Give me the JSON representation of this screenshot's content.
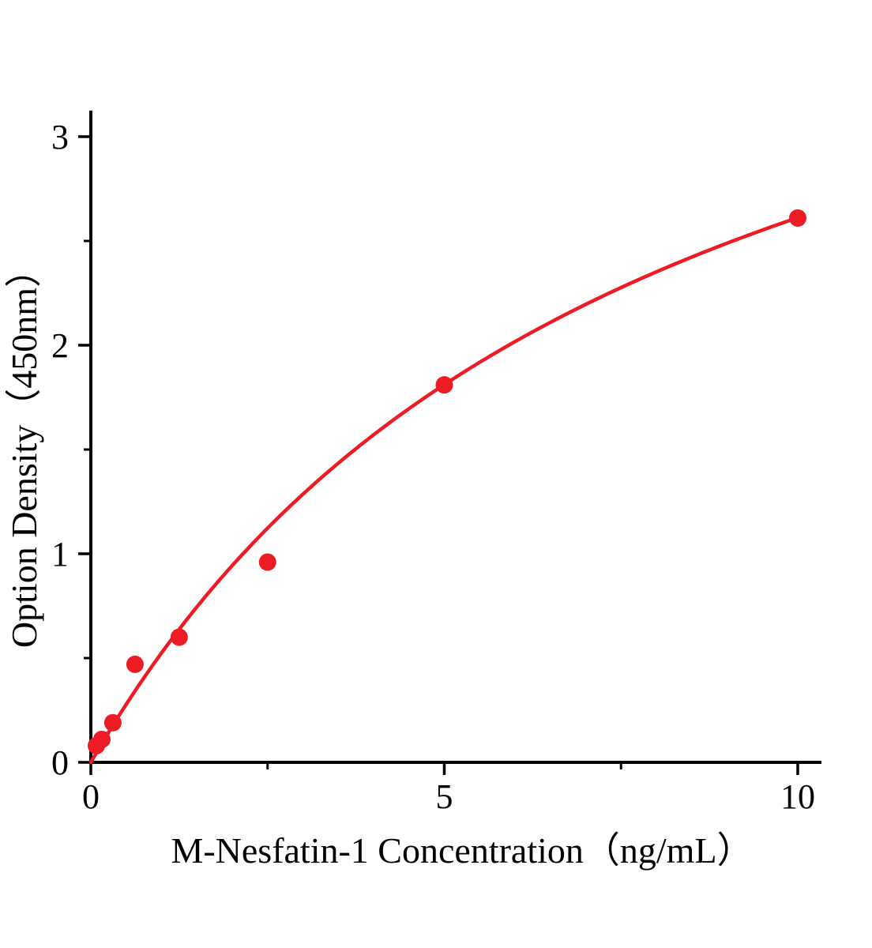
{
  "page": {
    "background": "#ffffff"
  },
  "chart_data": {
    "type": "scatter",
    "title": "",
    "xlabel": "M-Nesfatin-1 Concentration（ng/mL）",
    "ylabel": "Option Density（450nm）",
    "x_ticks": [
      0,
      5,
      10
    ],
    "y_ticks": [
      0,
      1,
      2,
      3
    ],
    "x_minor_ticks": [
      2.5,
      7.5
    ],
    "y_minor_ticks": [
      0.5,
      1.5,
      2.5
    ],
    "xlim": [
      0,
      10.35
    ],
    "ylim": [
      0,
      3.1
    ],
    "grid": false,
    "legend": null,
    "marker_color": "#ed1c24",
    "line_color": "#ed1c24",
    "axis_color": "#000000",
    "points": [
      {
        "x": 0.078,
        "y": 0.08
      },
      {
        "x": 0.156,
        "y": 0.11
      },
      {
        "x": 0.312,
        "y": 0.19
      },
      {
        "x": 0.625,
        "y": 0.47
      },
      {
        "x": 1.25,
        "y": 0.6
      },
      {
        "x": 2.5,
        "y": 0.96
      },
      {
        "x": 5,
        "y": 1.81
      },
      {
        "x": 10,
        "y": 2.61
      }
    ],
    "fit_curve": {
      "model": "y = a*x/(b+x)",
      "a": 4.68,
      "b": 7.92,
      "x_range": [
        0,
        10
      ]
    }
  }
}
